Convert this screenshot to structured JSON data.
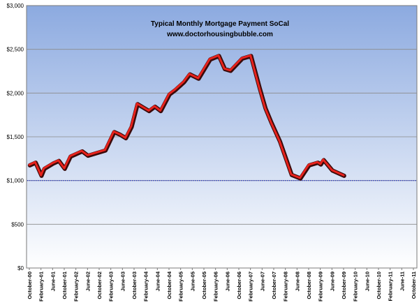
{
  "chart_data": {
    "type": "line",
    "title": "Typical Monthly Mortgage Payment  SoCal",
    "subtitle": "www.doctorhousingbubble.com",
    "xlabel": "",
    "ylabel": "",
    "ylim": [
      0,
      3000
    ],
    "y_ticks": [
      "$0",
      "$500",
      "$1,000",
      "$1,500",
      "$2,000",
      "$2,500",
      "$3,000"
    ],
    "x_tick_labels": [
      "October-00",
      "February-01",
      "June-01",
      "October-01",
      "February-02",
      "June-02",
      "October-02",
      "February-03",
      "June-03",
      "October-03",
      "February-04",
      "June-04",
      "October-04",
      "February-05",
      "June-05",
      "October-05",
      "February-06",
      "June-06",
      "October-06",
      "February-07",
      "June-07",
      "October-07",
      "February-08",
      "June-08",
      "October-08",
      "February-09",
      "June-09",
      "October-09",
      "February-10",
      "June-10",
      "October-10",
      "February-11",
      "June-11",
      "October-11"
    ],
    "x_months": [
      "2000-10",
      "2000-12",
      "2001-02",
      "2001-03",
      "2001-06",
      "2001-08",
      "2001-10",
      "2001-12",
      "2002-02",
      "2002-04",
      "2002-06",
      "2002-09",
      "2002-12",
      "2003-03",
      "2003-05",
      "2003-07",
      "2003-09",
      "2003-11",
      "2004-03",
      "2004-05",
      "2004-07",
      "2004-10",
      "2004-12",
      "2005-03",
      "2005-05",
      "2005-08",
      "2005-12",
      "2006-03",
      "2006-05",
      "2006-07",
      "2006-09",
      "2006-11",
      "2007-02",
      "2007-05",
      "2007-07",
      "2007-09",
      "2007-12",
      "2008-04",
      "2008-07",
      "2008-10",
      "2009-01",
      "2009-02",
      "2009-03",
      "2009-06",
      "2009-10"
    ],
    "grid": true,
    "colors": {
      "plot_top": "#8caae0",
      "plot_bottom": "#ffffff",
      "line": "#e8221c",
      "line_shadow": "#3a0a0a",
      "reference_line": "#1f2fc8",
      "grid": "#8a8a8a"
    },
    "series": [
      {
        "values": [
          1180,
          1210,
          1060,
          1140,
          1200,
          1230,
          1140,
          1280,
          1310,
          1340,
          1290,
          1320,
          1350,
          1560,
          1530,
          1490,
          1620,
          1880,
          1800,
          1850,
          1800,
          1990,
          2040,
          2130,
          2220,
          2170,
          2390,
          2430,
          2280,
          2260,
          2330,
          2400,
          2430,
          2060,
          1830,
          1670,
          1450,
          1070,
          1030,
          1180,
          1210,
          1190,
          1240,
          1120,
          1060
        ]
      }
    ],
    "reference_line": {
      "y": 1000
    }
  }
}
